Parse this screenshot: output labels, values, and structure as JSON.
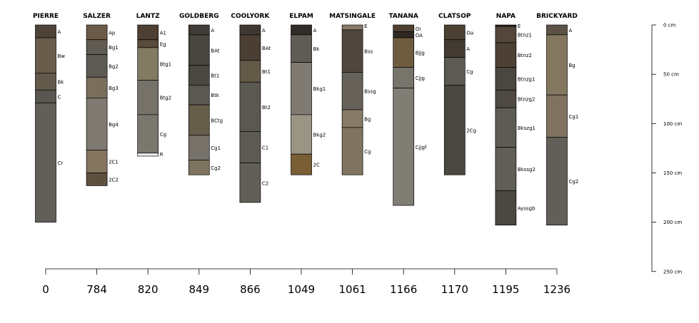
{
  "profiles": [
    {
      "name": "PIERRE",
      "value": "0",
      "horizons": [
        {
          "name": "A",
          "top": 0,
          "bottom": 13,
          "color": "#4e4338"
        },
        {
          "name": "Bw",
          "top": 13,
          "bottom": 49,
          "color": "#6a5c4b"
        },
        {
          "name": "Bk",
          "top": 49,
          "bottom": 66,
          "color": "#635a4b"
        },
        {
          "name": "C",
          "top": 66,
          "bottom": 79,
          "color": "#5a5750"
        },
        {
          "name": "Cr",
          "top": 79,
          "bottom": 200,
          "color": "#625f58"
        }
      ]
    },
    {
      "name": "SALZER",
      "value": "784",
      "horizons": [
        {
          "name": "Ap",
          "top": 0,
          "bottom": 15,
          "color": "#6b5a47"
        },
        {
          "name": "Bg1",
          "top": 15,
          "bottom": 30,
          "color": "#5f5a52"
        },
        {
          "name": "Bg2",
          "top": 30,
          "bottom": 53,
          "color": "#5c5a52"
        },
        {
          "name": "Bg3",
          "top": 53,
          "bottom": 74,
          "color": "#7a6f5b"
        },
        {
          "name": "Bg4",
          "top": 74,
          "bottom": 127,
          "color": "#7f7a70"
        },
        {
          "name": "2C1",
          "top": 127,
          "bottom": 150,
          "color": "#847560"
        },
        {
          "name": "2C2",
          "top": 150,
          "bottom": 163,
          "color": "#5e503f"
        }
      ]
    },
    {
      "name": "LANTZ",
      "value": "820",
      "horizons": [
        {
          "name": "A1",
          "top": 0,
          "bottom": 15,
          "color": "#4d3f31"
        },
        {
          "name": "Eg",
          "top": 15,
          "bottom": 23,
          "color": "#5a4c3b"
        },
        {
          "name": "Btg1",
          "top": 23,
          "bottom": 56,
          "color": "#837a62"
        },
        {
          "name": "Btg2",
          "top": 56,
          "bottom": 91,
          "color": "#76726a"
        },
        {
          "name": "Cg",
          "top": 91,
          "bottom": 130,
          "color": "#7a776f"
        },
        {
          "name": "R",
          "top": 130,
          "bottom": 133,
          "color": "#f2f0ee"
        }
      ]
    },
    {
      "name": "GOLDBERG",
      "value": "849",
      "horizons": [
        {
          "name": "A",
          "top": 0,
          "bottom": 10,
          "color": "#403b36"
        },
        {
          "name": "BAt",
          "top": 10,
          "bottom": 41,
          "color": "#48443e"
        },
        {
          "name": "Bt1",
          "top": 41,
          "bottom": 61,
          "color": "#4b4741"
        },
        {
          "name": "Btk",
          "top": 61,
          "bottom": 81,
          "color": "#5b5851"
        },
        {
          "name": "BCtg",
          "top": 81,
          "bottom": 112,
          "color": "#665d4b"
        },
        {
          "name": "Cg1",
          "top": 112,
          "bottom": 137,
          "color": "#77736a"
        },
        {
          "name": "Cg2",
          "top": 137,
          "bottom": 152,
          "color": "#7e735e"
        }
      ]
    },
    {
      "name": "COOLYORK",
      "value": "866",
      "horizons": [
        {
          "name": "A",
          "top": 0,
          "bottom": 10,
          "color": "#3f3830"
        },
        {
          "name": "BAt",
          "top": 10,
          "bottom": 36,
          "color": "#4a3f32"
        },
        {
          "name": "Bt1",
          "top": 36,
          "bottom": 58,
          "color": "#635a48"
        },
        {
          "name": "Bt2",
          "top": 58,
          "bottom": 108,
          "color": "#5b5851"
        },
        {
          "name": "C1",
          "top": 108,
          "bottom": 140,
          "color": "#5c5a53"
        },
        {
          "name": "C2",
          "top": 140,
          "bottom": 180,
          "color": "#625f58"
        }
      ]
    },
    {
      "name": "ELPAM",
      "value": "1049",
      "horizons": [
        {
          "name": "A",
          "top": 0,
          "bottom": 10,
          "color": "#302c27"
        },
        {
          "name": "Bk",
          "top": 10,
          "bottom": 38,
          "color": "#5f5c55"
        },
        {
          "name": "Bkg1",
          "top": 38,
          "bottom": 91,
          "color": "#7f7b72"
        },
        {
          "name": "Bkg2",
          "top": 91,
          "bottom": 131,
          "color": "#9a9484"
        },
        {
          "name": "2C",
          "top": 131,
          "bottom": 152,
          "color": "#7a5e35"
        }
      ]
    },
    {
      "name": "MATSINGALE",
      "value": "1061",
      "horizons": [
        {
          "name": "E",
          "top": 0,
          "bottom": 5,
          "color": "#877b6a"
        },
        {
          "name": "Bss",
          "top": 5,
          "bottom": 48,
          "color": "#4f473e"
        },
        {
          "name": "Bssg",
          "top": 48,
          "bottom": 86,
          "color": "#66625a"
        },
        {
          "name": "Bg",
          "top": 86,
          "bottom": 104,
          "color": "#877a66"
        },
        {
          "name": "Cg",
          "top": 104,
          "bottom": 152,
          "color": "#807460"
        }
      ]
    },
    {
      "name": "TANANA",
      "value": "1166",
      "horizons": [
        {
          "name": "Oi",
          "top": 0,
          "bottom": 7,
          "color": "#4e3f30"
        },
        {
          "name": "OA",
          "top": 7,
          "bottom": 13,
          "color": "#2f2924"
        },
        {
          "name": "Bjjg",
          "top": 13,
          "bottom": 43,
          "color": "#6f5b3e"
        },
        {
          "name": "Cjjg",
          "top": 43,
          "bottom": 64,
          "color": "#77746c"
        },
        {
          "name": "Cjjgf",
          "top": 64,
          "bottom": 183,
          "color": "#807d74"
        }
      ]
    },
    {
      "name": "CLATSOP",
      "value": "1170",
      "horizons": [
        {
          "name": "Oa",
          "top": 0,
          "bottom": 15,
          "color": "#4c4033"
        },
        {
          "name": "A",
          "top": 15,
          "bottom": 33,
          "color": "#433b32"
        },
        {
          "name": "Cg",
          "top": 33,
          "bottom": 61,
          "color": "#5c5a54"
        },
        {
          "name": "2Cg",
          "top": 61,
          "bottom": 152,
          "color": "#4b4741"
        }
      ]
    },
    {
      "name": "NAPA",
      "value": "1195",
      "horizons": [
        {
          "name": "E",
          "top": 0,
          "bottom": 1.5,
          "color": "#2a2520"
        },
        {
          "name": "Btnz1",
          "top": 1.5,
          "bottom": 18,
          "color": "#54463a"
        },
        {
          "name": "Btnz2",
          "top": 18,
          "bottom": 43,
          "color": "#4d4136"
        },
        {
          "name": "Btnzg1",
          "top": 43,
          "bottom": 66,
          "color": "#4a4640"
        },
        {
          "name": "Btnzg2",
          "top": 66,
          "bottom": 84,
          "color": "#4e4a43"
        },
        {
          "name": "Bkszg1",
          "top": 84,
          "bottom": 124,
          "color": "#5e5b54"
        },
        {
          "name": "Bkssg2",
          "top": 124,
          "bottom": 168,
          "color": "#615e57"
        },
        {
          "name": "Ayssgb",
          "top": 168,
          "bottom": 203,
          "color": "#4b4741"
        }
      ]
    },
    {
      "name": "BRICKYARD",
      "value": "1236",
      "horizons": [
        {
          "name": "A",
          "top": 0,
          "bottom": 10,
          "color": "#5c5346"
        },
        {
          "name": "Bg",
          "top": 10,
          "bottom": 71,
          "color": "#847760"
        },
        {
          "name": "Cg1",
          "top": 71,
          "bottom": 114,
          "color": "#807460"
        },
        {
          "name": "Cg2",
          "top": 114,
          "bottom": 203,
          "color": "#625f58"
        }
      ]
    }
  ],
  "depth_axis": {
    "ticks": [
      {
        "value": 0,
        "label": "0 cm"
      },
      {
        "value": 50,
        "label": "50 cm"
      },
      {
        "value": 100,
        "label": "100 cm"
      },
      {
        "value": 150,
        "label": "150 cm"
      },
      {
        "value": 200,
        "label": "200 cm"
      },
      {
        "value": 250,
        "label": "250 cm"
      }
    ]
  },
  "colors": {
    "outline": "#000000",
    "text": "#000000"
  }
}
